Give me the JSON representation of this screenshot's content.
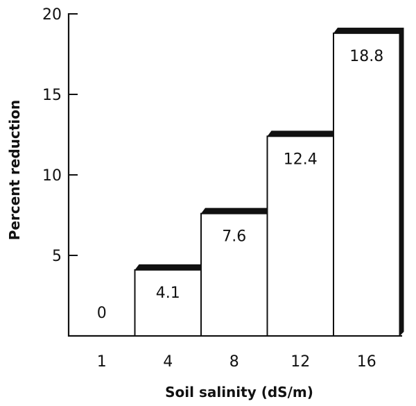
{
  "chart_data": {
    "type": "bar",
    "title": "",
    "xlabel": "Soil salinity (dS/m)",
    "ylabel": "Percent reduction",
    "categories": [
      "1",
      "4",
      "8",
      "12",
      "16"
    ],
    "values": [
      0,
      4.1,
      7.6,
      12.4,
      18.8
    ],
    "data_labels": [
      "0",
      "4.1",
      "7.6",
      "12.4",
      "18.8"
    ],
    "ylim": [
      0,
      20
    ],
    "yticks": [
      5,
      10,
      15,
      20
    ],
    "ytick_labels": [
      "5",
      "10",
      "15",
      "20"
    ],
    "grid": false,
    "legend": "none"
  }
}
